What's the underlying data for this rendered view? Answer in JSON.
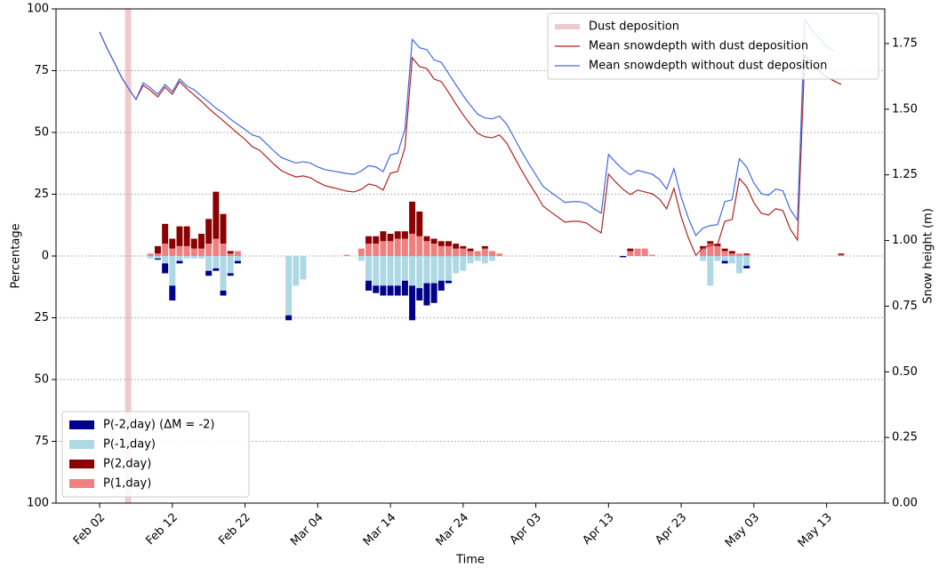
{
  "chart_data": {
    "type": "bar",
    "x_label": "Time",
    "y_label": "Percentage",
    "y2_label": "Snow height (m)",
    "xlim": [
      "Jan 27",
      "May 21"
    ],
    "xticks": [
      "Feb 02",
      "Feb 12",
      "Feb 22",
      "Mar 04",
      "Mar 14",
      "Mar 24",
      "Apr 03",
      "Apr 13",
      "Apr 23",
      "May 03",
      "May 13"
    ],
    "ylim": [
      -100,
      100
    ],
    "yticks": [
      {
        "value": -100,
        "label": "100"
      },
      {
        "value": -75,
        "label": "75"
      },
      {
        "value": -50,
        "label": "50"
      },
      {
        "value": -25,
        "label": "25"
      },
      0,
      25,
      50,
      75,
      100
    ],
    "y2lim": [
      0,
      1.882
    ],
    "y2ticks": [
      {
        "value": 0,
        "label": "0.00"
      },
      0.25,
      {
        "value": 0.5,
        "label": "0.50"
      },
      0.75,
      {
        "value": 1,
        "label": "1.00"
      },
      1.25,
      {
        "value": 1.5,
        "label": "1.50"
      },
      1.75
    ],
    "grid": true,
    "legend": "lower left",
    "legend2": "upper right",
    "dust_deposition": {
      "name": "Dust deposition",
      "x": "Feb 06",
      "color": "#efcaca"
    },
    "x": [
      "Feb 02",
      "Feb 03",
      "Feb 04",
      "Feb 05",
      "Feb 06",
      "Feb 07",
      "Feb 08",
      "Feb 09",
      "Feb 10",
      "Feb 11",
      "Feb 12",
      "Feb 13",
      "Feb 14",
      "Feb 15",
      "Feb 16",
      "Feb 17",
      "Feb 18",
      "Feb 19",
      "Feb 20",
      "Feb 21",
      "Feb 22",
      "Feb 23",
      "Feb 24",
      "Feb 25",
      "Feb 26",
      "Feb 27",
      "Feb 28",
      "Mar 01",
      "Mar 02",
      "Mar 03",
      "Mar 04",
      "Mar 05",
      "Mar 06",
      "Mar 07",
      "Mar 08",
      "Mar 09",
      "Mar 10",
      "Mar 11",
      "Mar 12",
      "Mar 13",
      "Mar 14",
      "Mar 15",
      "Mar 16",
      "Mar 17",
      "Mar 18",
      "Mar 19",
      "Mar 20",
      "Mar 21",
      "Mar 22",
      "Mar 23",
      "Mar 24",
      "Mar 25",
      "Mar 26",
      "Mar 27",
      "Mar 28",
      "Mar 29",
      "Mar 30",
      "Mar 31",
      "Apr 01",
      "Apr 02",
      "Apr 03",
      "Apr 04",
      "Apr 05",
      "Apr 06",
      "Apr 07",
      "Apr 08",
      "Apr 09",
      "Apr 10",
      "Apr 11",
      "Apr 12",
      "Apr 13",
      "Apr 14",
      "Apr 15",
      "Apr 16",
      "Apr 17",
      "Apr 18",
      "Apr 19",
      "Apr 20",
      "Apr 21",
      "Apr 22",
      "Apr 23",
      "Apr 24",
      "Apr 25",
      "Apr 26",
      "Apr 27",
      "Apr 28",
      "Apr 29",
      "Apr 30",
      "May 01",
      "May 02",
      "May 03",
      "May 04",
      "May 05",
      "May 06",
      "May 07",
      "May 08",
      "May 09",
      "May 10",
      "May 11",
      "May 12",
      "May 13",
      "May 14",
      "May 15"
    ],
    "series": [
      {
        "name": "P(-2,day) (ΔM = -2)",
        "type": "bar",
        "color": "#00008b",
        "x": [
          "Feb 09",
          "Feb 10",
          "Feb 11",
          "Feb 12",
          "Feb 13",
          "Feb 14",
          "Feb 15",
          "Feb 16",
          "Feb 17",
          "Feb 18",
          "Feb 19",
          "Feb 20",
          "Feb 21",
          "Feb 28",
          "Mar 01",
          "Mar 02",
          "Mar 08",
          "Mar 10",
          "Mar 11",
          "Mar 12",
          "Mar 13",
          "Mar 14",
          "Mar 15",
          "Mar 16",
          "Mar 17",
          "Mar 18",
          "Mar 19",
          "Mar 20",
          "Mar 21",
          "Mar 22",
          "Mar 23",
          "Mar 24",
          "Mar 25",
          "Mar 26",
          "Mar 27",
          "Mar 28",
          "Mar 29",
          "Apr 15",
          "Apr 16",
          "Apr 17",
          "Apr 18",
          "Apr 19",
          "Apr 26",
          "Apr 27",
          "Apr 28",
          "Apr 29",
          "Apr 30",
          "May 01",
          "May 02",
          "May 15"
        ],
        "values": [
          null,
          -0.5,
          -4,
          -6,
          -1,
          null,
          null,
          null,
          -2,
          -1,
          -2,
          -1,
          -1,
          -2,
          null,
          null,
          null,
          null,
          -4,
          -3,
          -4,
          -4,
          -4,
          -6,
          -14,
          -5,
          -9,
          -8,
          -4,
          -1,
          null,
          null,
          null,
          null,
          null,
          null,
          null,
          -0.5,
          null,
          null,
          null,
          null,
          null,
          null,
          null,
          -1,
          null,
          null,
          -1,
          null
        ]
      },
      {
        "name": "P(-1,day)",
        "type": "bar",
        "color": "#add8e6",
        "x": [
          "Feb 09",
          "Feb 10",
          "Feb 11",
          "Feb 12",
          "Feb 13",
          "Feb 14",
          "Feb 15",
          "Feb 16",
          "Feb 17",
          "Feb 18",
          "Feb 19",
          "Feb 20",
          "Feb 21",
          "Feb 28",
          "Mar 01",
          "Mar 02",
          "Mar 08",
          "Mar 10",
          "Mar 11",
          "Mar 12",
          "Mar 13",
          "Mar 14",
          "Mar 15",
          "Mar 16",
          "Mar 17",
          "Mar 18",
          "Mar 19",
          "Mar 20",
          "Mar 21",
          "Mar 22",
          "Mar 23",
          "Mar 24",
          "Mar 25",
          "Mar 26",
          "Mar 27",
          "Mar 28",
          "Mar 29",
          "Apr 15",
          "Apr 16",
          "Apr 17",
          "Apr 18",
          "Apr 19",
          "Apr 26",
          "Apr 27",
          "Apr 28",
          "Apr 29",
          "Apr 30",
          "May 01",
          "May 02",
          "May 15"
        ],
        "values": [
          -1,
          -1,
          -3,
          -12,
          -2,
          -1,
          -1,
          -1,
          -6,
          -5,
          -14,
          -7,
          -2,
          -24,
          -12,
          -9.5,
          null,
          -2,
          -10,
          -12,
          -12,
          -12,
          -12,
          -10,
          -12,
          -13,
          -11,
          -11,
          -10,
          -10,
          -7,
          -6,
          -3,
          -2,
          -3,
          -2,
          null,
          null,
          null,
          null,
          null,
          null,
          -2,
          -12,
          -2,
          -2,
          -3,
          -7,
          -4,
          null
        ]
      },
      {
        "name": "P(2,day)",
        "type": "bar",
        "color": "#8b0000",
        "x": [
          "Feb 09",
          "Feb 10",
          "Feb 11",
          "Feb 12",
          "Feb 13",
          "Feb 14",
          "Feb 15",
          "Feb 16",
          "Feb 17",
          "Feb 18",
          "Feb 19",
          "Feb 20",
          "Feb 21",
          "Feb 28",
          "Mar 01",
          "Mar 02",
          "Mar 08",
          "Mar 10",
          "Mar 11",
          "Mar 12",
          "Mar 13",
          "Mar 14",
          "Mar 15",
          "Mar 16",
          "Mar 17",
          "Mar 18",
          "Mar 19",
          "Mar 20",
          "Mar 21",
          "Mar 22",
          "Mar 23",
          "Mar 24",
          "Mar 25",
          "Mar 26",
          "Mar 27",
          "Mar 28",
          "Mar 29",
          "Apr 15",
          "Apr 16",
          "Apr 17",
          "Apr 18",
          "Apr 19",
          "Apr 26",
          "Apr 27",
          "Apr 28",
          "Apr 29",
          "Apr 30",
          "May 01",
          "May 02",
          "May 15"
        ],
        "values": [
          null,
          3,
          8,
          4,
          8,
          8,
          4,
          6,
          10,
          19,
          12,
          1,
          null,
          null,
          null,
          null,
          null,
          null,
          3,
          3,
          4,
          3,
          3,
          3,
          13,
          10,
          2,
          2,
          2,
          2,
          2,
          1,
          1,
          null,
          1,
          null,
          null,
          null,
          1,
          null,
          null,
          null,
          1,
          1,
          1,
          1,
          1,
          null,
          0.5,
          0.5
        ]
      },
      {
        "name": "P(1,day)",
        "type": "bar",
        "color": "#f08080",
        "x": [
          "Feb 09",
          "Feb 10",
          "Feb 11",
          "Feb 12",
          "Feb 13",
          "Feb 14",
          "Feb 15",
          "Feb 16",
          "Feb 17",
          "Feb 18",
          "Feb 19",
          "Feb 20",
          "Feb 21",
          "Feb 28",
          "Mar 01",
          "Mar 02",
          "Mar 08",
          "Mar 10",
          "Mar 11",
          "Mar 12",
          "Mar 13",
          "Mar 14",
          "Mar 15",
          "Mar 16",
          "Mar 17",
          "Mar 18",
          "Mar 19",
          "Mar 20",
          "Mar 21",
          "Mar 22",
          "Mar 23",
          "Mar 24",
          "Mar 25",
          "Mar 26",
          "Mar 27",
          "Mar 28",
          "Mar 29",
          "Apr 15",
          "Apr 16",
          "Apr 17",
          "Apr 18",
          "Apr 19",
          "Apr 26",
          "Apr 27",
          "Apr 28",
          "Apr 29",
          "Apr 30",
          "May 01",
          "May 02",
          "May 15"
        ],
        "values": [
          1,
          1,
          5,
          3,
          4,
          4,
          3,
          3,
          5,
          7,
          5,
          1,
          2,
          null,
          null,
          null,
          0.5,
          3,
          5,
          5,
          6,
          6,
          7,
          7,
          9,
          8,
          6,
          5,
          4,
          4,
          3,
          3,
          2,
          2,
          3,
          2,
          1,
          null,
          2,
          3,
          3,
          0.5,
          3,
          5,
          4,
          2,
          1,
          1,
          0.5,
          0.5
        ]
      },
      {
        "name": "Mean snowdepth with dust deposition",
        "type": "line",
        "axis": "y2",
        "color": "#b22222",
        "values": [
          1.794,
          1.733,
          1.679,
          1.622,
          1.578,
          1.537,
          1.591,
          1.571,
          1.547,
          1.584,
          1.557,
          1.605,
          1.578,
          1.554,
          1.53,
          1.503,
          1.479,
          1.456,
          1.432,
          1.408,
          1.385,
          1.357,
          1.344,
          1.317,
          1.29,
          1.266,
          1.253,
          1.242,
          1.246,
          1.239,
          1.222,
          1.209,
          1.202,
          1.195,
          1.188,
          1.185,
          1.195,
          1.215,
          1.209,
          1.192,
          1.256,
          1.263,
          1.354,
          1.696,
          1.662,
          1.655,
          1.615,
          1.605,
          1.564,
          1.52,
          1.479,
          1.442,
          1.408,
          1.395,
          1.391,
          1.402,
          1.371,
          1.32,
          1.269,
          1.222,
          1.178,
          1.131,
          1.11,
          1.09,
          1.07,
          1.073,
          1.073,
          1.066,
          1.046,
          1.029,
          1.253,
          1.222,
          1.195,
          1.175,
          1.192,
          1.185,
          1.178,
          1.158,
          1.121,
          1.198,
          1.09,
          1.009,
          0.944,
          0.972,
          0.982,
          0.985,
          1.073,
          1.08,
          1.236,
          1.205,
          1.144,
          1.104,
          1.097,
          1.121,
          1.114,
          1.043,
          1.002,
          1.706,
          1.672,
          1.645,
          1.622,
          1.608,
          1.594
        ]
      },
      {
        "name": "Mean snowdepth without dust deposition",
        "type": "line",
        "axis": "y2",
        "color": "#4169e1",
        "values": [
          1.794,
          1.733,
          1.679,
          1.622,
          1.578,
          1.537,
          1.601,
          1.581,
          1.557,
          1.594,
          1.567,
          1.615,
          1.588,
          1.574,
          1.55,
          1.528,
          1.504,
          1.486,
          1.462,
          1.442,
          1.423,
          1.402,
          1.394,
          1.367,
          1.34,
          1.316,
          1.305,
          1.295,
          1.3,
          1.295,
          1.28,
          1.27,
          1.265,
          1.26,
          1.255,
          1.252,
          1.265,
          1.285,
          1.28,
          1.262,
          1.326,
          1.333,
          1.424,
          1.766,
          1.734,
          1.727,
          1.688,
          1.678,
          1.636,
          1.593,
          1.552,
          1.515,
          1.481,
          1.467,
          1.463,
          1.474,
          1.443,
          1.392,
          1.341,
          1.294,
          1.25,
          1.206,
          1.185,
          1.165,
          1.145,
          1.148,
          1.148,
          1.141,
          1.121,
          1.104,
          1.328,
          1.297,
          1.27,
          1.25,
          1.267,
          1.26,
          1.253,
          1.233,
          1.196,
          1.273,
          1.165,
          1.084,
          1.019,
          1.047,
          1.057,
          1.06,
          1.148,
          1.155,
          1.311,
          1.28,
          1.219,
          1.179,
          1.172,
          1.196,
          1.189,
          1.118,
          1.077,
          1.842,
          1.8,
          1.77,
          1.74,
          1.72,
          null
        ]
      }
    ]
  }
}
